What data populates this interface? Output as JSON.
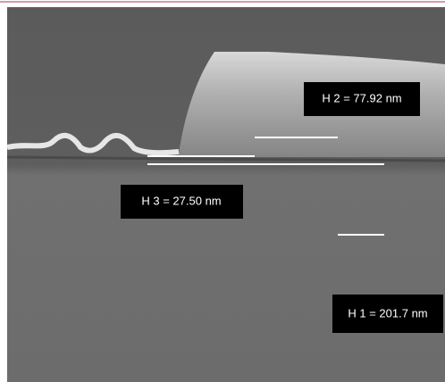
{
  "labels": [
    {
      "text": "H 2 = 77.92 nm"
    },
    {
      "text": "H 3 = 27.50 nm"
    },
    {
      "text": "H 1 = 201.7 nm"
    }
  ]
}
